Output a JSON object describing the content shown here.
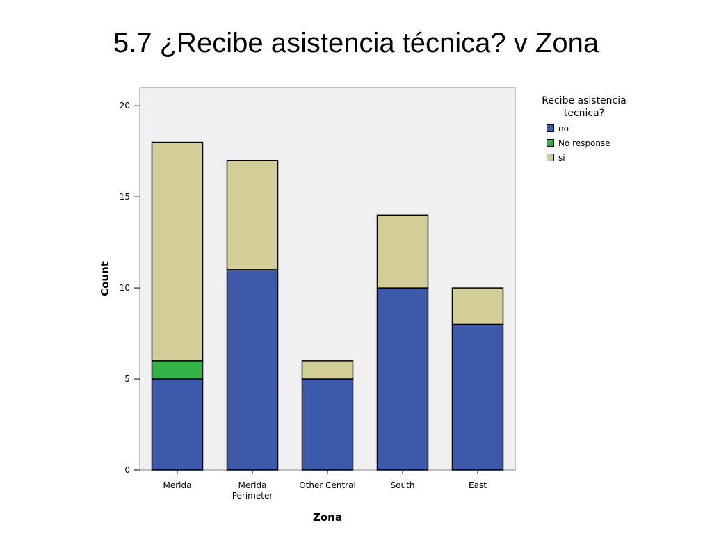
{
  "slide": {
    "title": "5.7 ¿Recibe asistencia técnica? v Zona"
  },
  "chart_data": {
    "type": "bar",
    "stacked": true,
    "categories": [
      "Merida",
      "Merida\nPerimeter",
      "Other Central",
      "South",
      "East"
    ],
    "series": [
      {
        "name": "no",
        "color": "#3d59a9",
        "values": [
          5,
          11,
          5,
          10,
          8
        ]
      },
      {
        "name": "No response",
        "color": "#33b347",
        "values": [
          1,
          0,
          0,
          0,
          0
        ]
      },
      {
        "name": "si",
        "color": "#d3ce98",
        "values": [
          12,
          6,
          1,
          4,
          2
        ]
      }
    ],
    "xlabel": "Zona",
    "ylabel": "Count",
    "ylim": [
      0,
      21
    ],
    "yticks": [
      0,
      5,
      10,
      15,
      20
    ],
    "grid": false,
    "plot_background": "#f0f0f0",
    "legend": {
      "title": "Recibe asistencia\ntecnica?",
      "position": "right"
    }
  }
}
